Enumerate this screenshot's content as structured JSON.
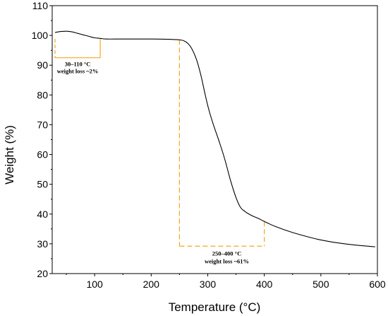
{
  "chart_data": {
    "type": "line",
    "title": "",
    "xlabel": "Temperature (°C)",
    "ylabel": "Weight (%)",
    "xlim": [
      25,
      600
    ],
    "ylim": [
      20,
      110
    ],
    "x_ticks": [
      100,
      200,
      300,
      400,
      500,
      600
    ],
    "y_ticks": [
      20,
      30,
      40,
      50,
      60,
      70,
      80,
      90,
      100,
      110
    ],
    "grid": false,
    "legend": "none",
    "line_color": "#000000",
    "annotation_color": "#F5A623",
    "series": [
      {
        "x": [
          30,
          40,
          50,
          60,
          70,
          80,
          90,
          100,
          110,
          120,
          150,
          200,
          230,
          250,
          258,
          265,
          272,
          280,
          288,
          295,
          302,
          310,
          320,
          330,
          340,
          350,
          358,
          365,
          370,
          380,
          390,
          400,
          420,
          450,
          480,
          500,
          530,
          560,
          596
        ],
        "y": [
          101.0,
          101.3,
          101.4,
          101.2,
          100.7,
          100.2,
          99.7,
          99.2,
          99.0,
          98.8,
          98.8,
          98.8,
          98.7,
          98.5,
          98.2,
          97.3,
          95.5,
          92.0,
          86.5,
          80.5,
          75.0,
          70.0,
          64.5,
          58.5,
          51.5,
          45.5,
          42.2,
          41.0,
          40.3,
          39.3,
          38.5,
          37.5,
          35.8,
          33.8,
          32.2,
          31.3,
          30.3,
          29.6,
          29.0
        ]
      }
    ],
    "annotations": [
      {
        "text_line1": "30–110 °C",
        "text_line2": "weight loss ~2%",
        "x_start": 30,
        "x_end": 110,
        "y_top": 98.8,
        "y_bottom": 92.5
      },
      {
        "text_line1": "250–400 °C",
        "text_line2": "weight loss ~61%",
        "x_start": 250,
        "x_end": 400,
        "y_top": 98.5,
        "y_bottom": 29.2,
        "right_top": 37.5
      }
    ]
  }
}
